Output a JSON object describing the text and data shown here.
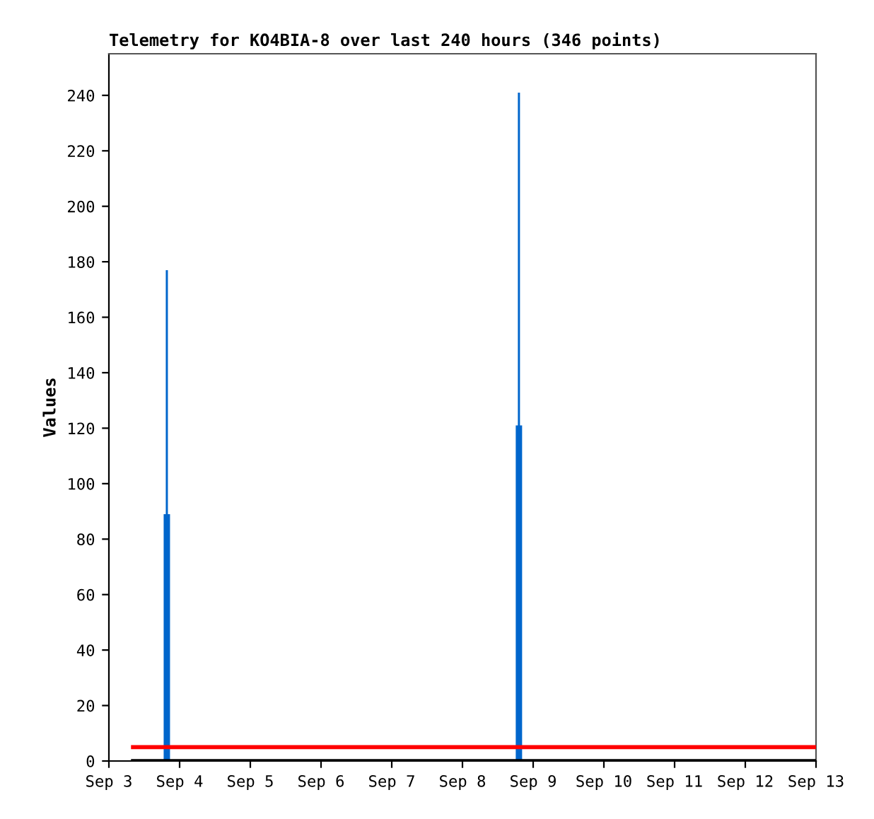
{
  "chart_data": {
    "type": "bar",
    "title": "Telemetry for KO4BIA-8 over last 240 hours (346 points)",
    "ylabel": "Values",
    "series": [
      {
        "color": "#0066cc",
        "x": [
          "--09-03T19:40",
          "--09-08T19:10"
        ],
        "values": [
          177,
          241
        ]
      },
      {
        "color": "#0066cc",
        "x": [
          "--09-03T19:40",
          "--09-08T19:10"
        ],
        "values": [
          89,
          121
        ]
      },
      {
        "type": "line",
        "color": "#ff0000",
        "x": [
          "--09-03T08:10",
          "--09-13"
        ],
        "values": [
          5,
          5
        ]
      },
      {
        "type": "line",
        "color": "#000000",
        "x": [
          "--09-03T08:10",
          "--09-13"
        ],
        "values": [
          0,
          0
        ]
      }
    ],
    "xlim": [
      "--09-03",
      "--09-13"
    ],
    "xticks": [
      {
        "value": "--09-03",
        "label": "Sep 3"
      },
      {
        "value": "--09-04",
        "label": "Sep 4"
      },
      {
        "value": "--09-05",
        "label": "Sep 5"
      },
      {
        "value": "--09-06",
        "label": "Sep 6"
      },
      {
        "value": "--09-07",
        "label": "Sep 7"
      },
      {
        "value": "--09-08",
        "label": "Sep 8"
      },
      {
        "value": "--09-09",
        "label": "Sep 9"
      },
      {
        "value": "--09-10",
        "label": "Sep 10"
      },
      {
        "value": "--09-11",
        "label": "Sep 11"
      },
      {
        "value": "--09-12",
        "label": "Sep 12"
      },
      {
        "value": "--09-13",
        "label": "Sep 13"
      }
    ],
    "ylim": [
      0,
      255
    ],
    "yticks": [
      0,
      20,
      40,
      60,
      80,
      100,
      120,
      140,
      160,
      180,
      200,
      220,
      240
    ],
    "grid": false,
    "legend": false
  }
}
